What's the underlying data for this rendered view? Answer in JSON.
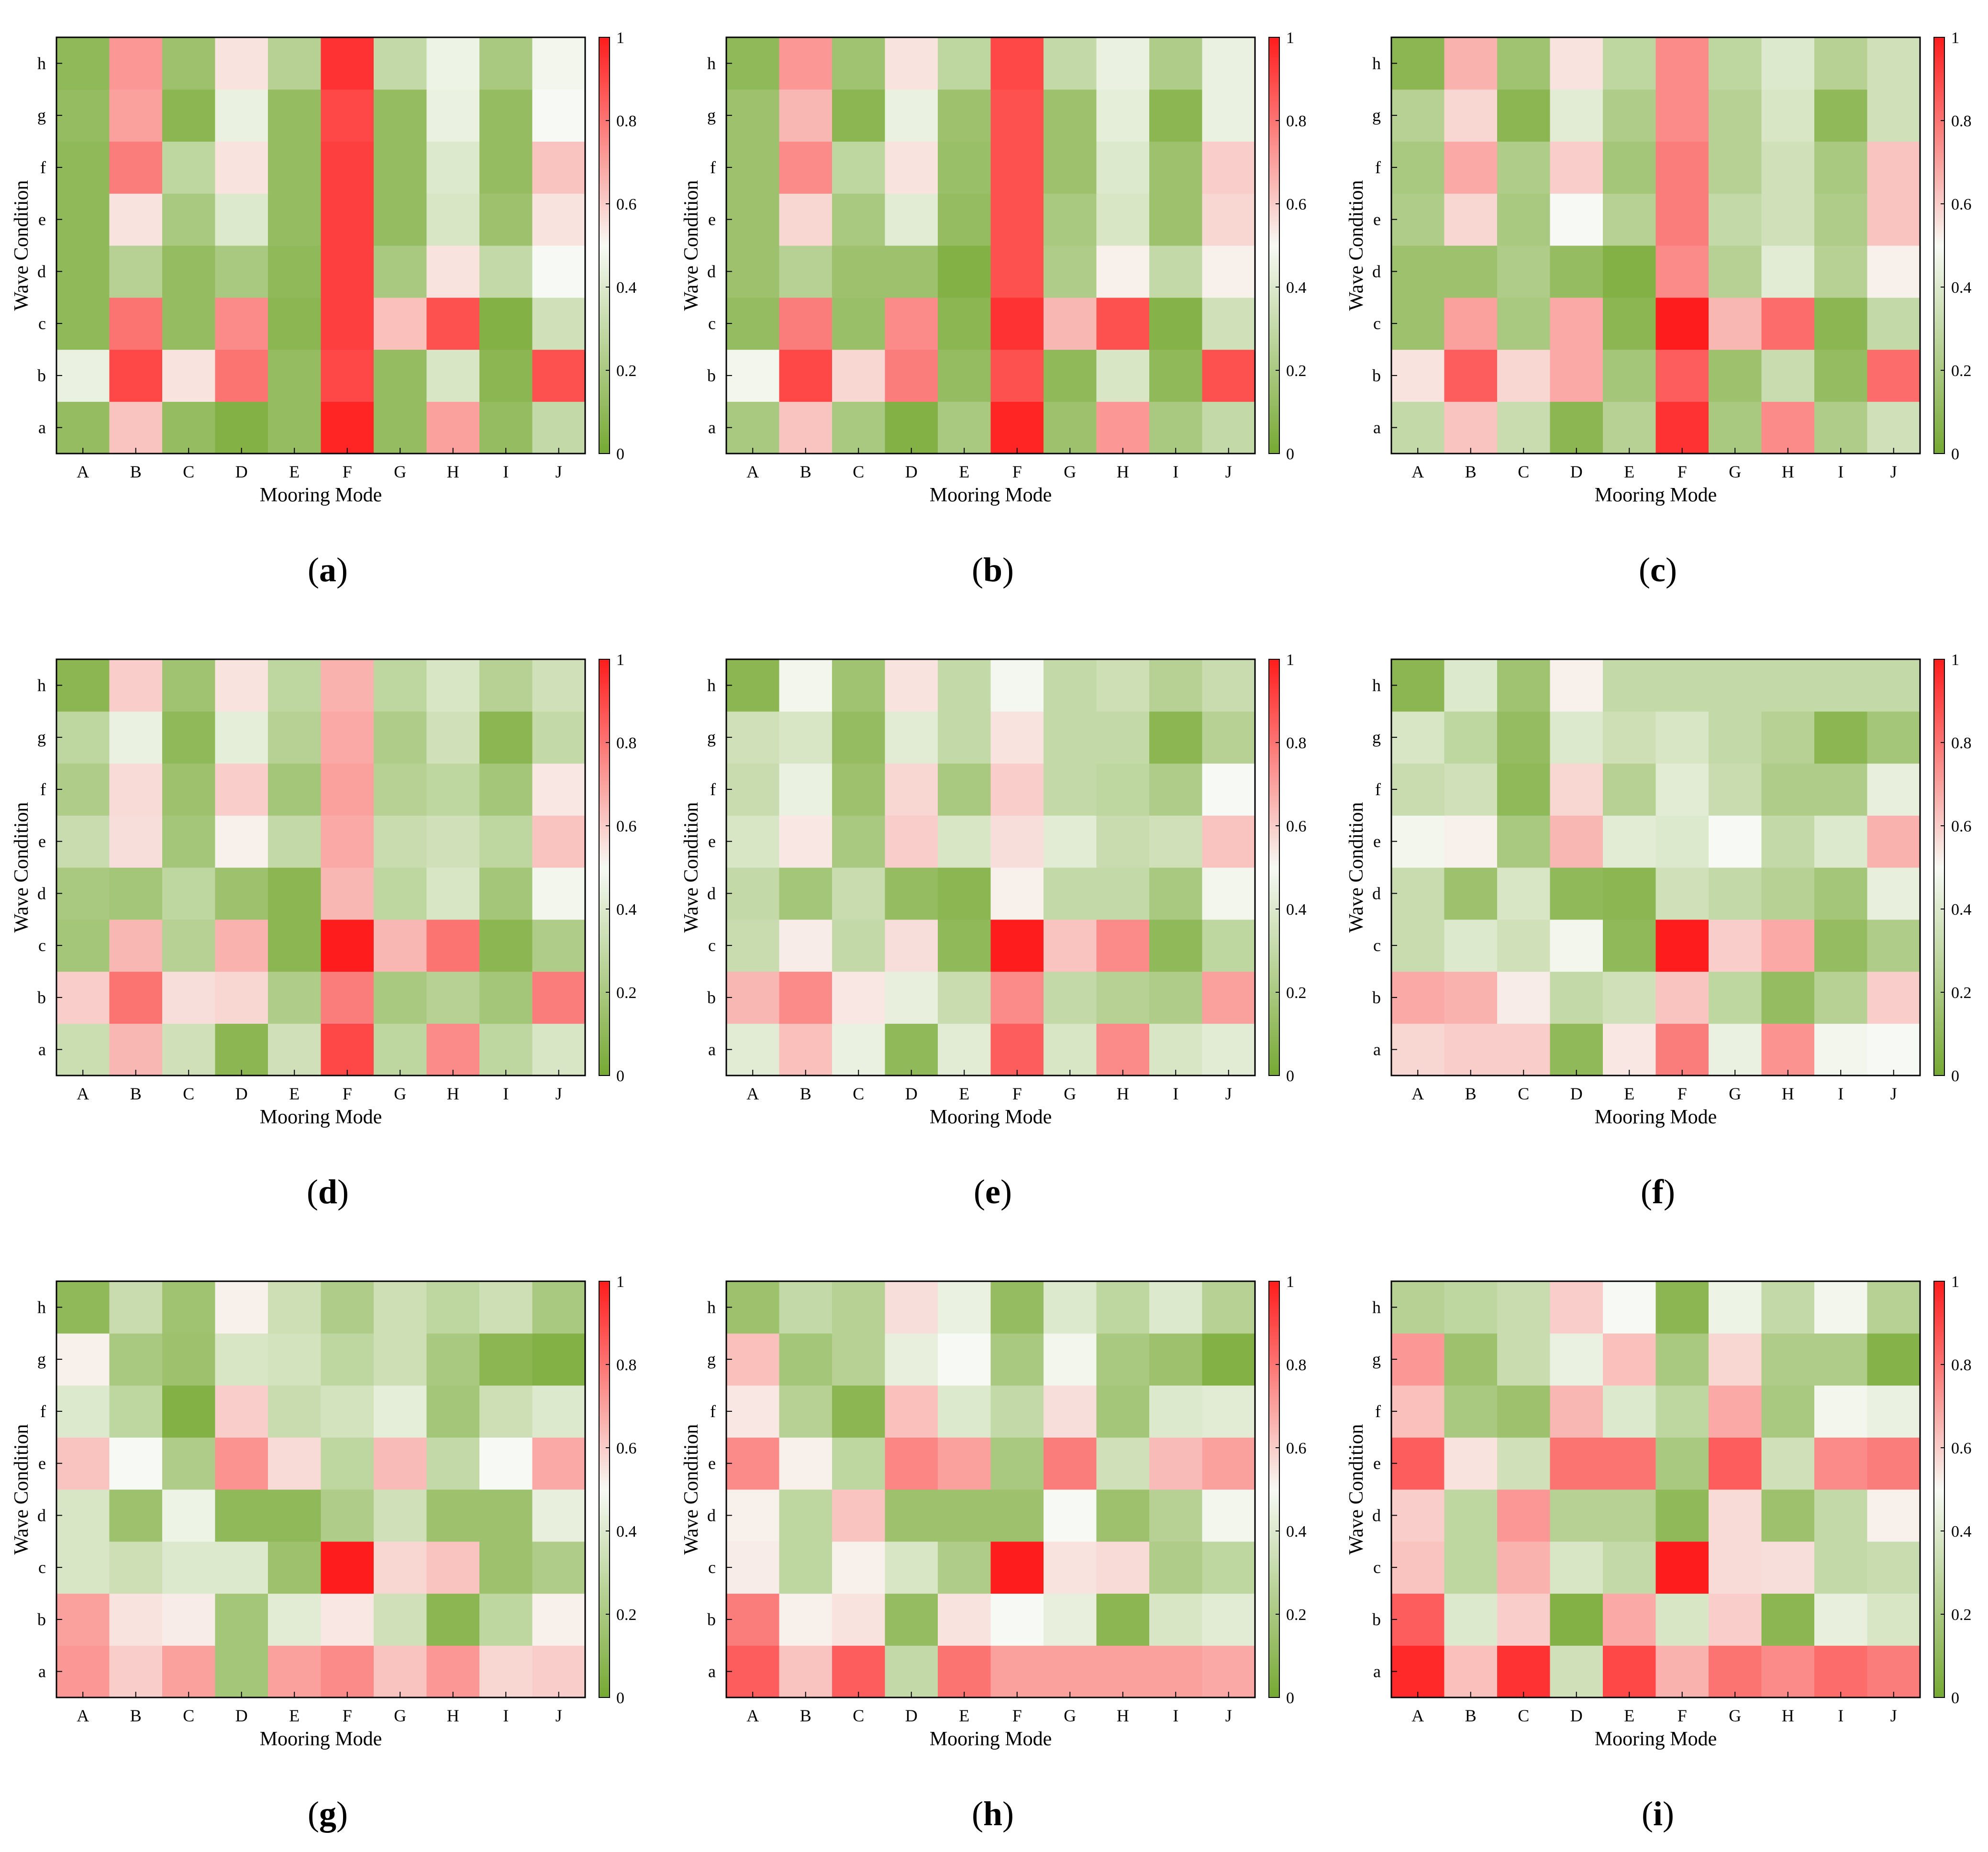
{
  "colors": {
    "low": "#76a933",
    "mid": "#f7f9f4",
    "high": "#ff1c1c",
    "frame": "#000000"
  },
  "chart_data": [
    {
      "type": "heatmap",
      "label_letter": "a",
      "xlabel": "Mooring Mode",
      "ylabel": "Wave Condition",
      "x_categories": [
        "A",
        "B",
        "C",
        "D",
        "E",
        "F",
        "G",
        "H",
        "I",
        "J"
      ],
      "y_categories": [
        "a",
        "b",
        "c",
        "d",
        "e",
        "f",
        "g",
        "h"
      ],
      "zlim": [
        0,
        1
      ],
      "colorbar_ticks": [
        "0",
        "0.2",
        "0.4",
        "0.6",
        "0.8",
        "1"
      ],
      "values": [
        [
          0.12,
          0.62,
          0.12,
          0.05,
          0.12,
          0.98,
          0.12,
          0.7,
          0.12,
          0.3
        ],
        [
          0.45,
          0.9,
          0.55,
          0.8,
          0.12,
          0.9,
          0.12,
          0.38,
          0.08,
          0.88
        ],
        [
          0.1,
          0.8,
          0.12,
          0.75,
          0.08,
          0.92,
          0.63,
          0.88,
          0.05,
          0.35
        ],
        [
          0.1,
          0.25,
          0.12,
          0.2,
          0.1,
          0.92,
          0.2,
          0.55,
          0.3,
          0.5
        ],
        [
          0.1,
          0.55,
          0.2,
          0.4,
          0.12,
          0.92,
          0.12,
          0.38,
          0.15,
          0.55
        ],
        [
          0.1,
          0.78,
          0.28,
          0.55,
          0.12,
          0.92,
          0.12,
          0.4,
          0.12,
          0.62
        ],
        [
          0.12,
          0.7,
          0.08,
          0.45,
          0.12,
          0.9,
          0.12,
          0.45,
          0.12,
          0.5
        ],
        [
          0.1,
          0.72,
          0.15,
          0.55,
          0.25,
          0.95,
          0.3,
          0.46,
          0.2,
          0.48
        ]
      ]
    },
    {
      "type": "heatmap",
      "label_letter": "b",
      "xlabel": "Mooring Mode",
      "ylabel": "Wave Condition",
      "x_categories": [
        "A",
        "B",
        "C",
        "D",
        "E",
        "F",
        "G",
        "H",
        "I",
        "J"
      ],
      "y_categories": [
        "a",
        "b",
        "c",
        "d",
        "e",
        "f",
        "g",
        "h"
      ],
      "zlim": [
        0,
        1
      ],
      "colorbar_ticks": [
        "0",
        "0.2",
        "0.4",
        "0.6",
        "0.8",
        "1"
      ],
      "values": [
        [
          0.2,
          0.62,
          0.2,
          0.05,
          0.2,
          0.98,
          0.15,
          0.72,
          0.2,
          0.3
        ],
        [
          0.48,
          0.9,
          0.58,
          0.78,
          0.12,
          0.88,
          0.1,
          0.38,
          0.1,
          0.88
        ],
        [
          0.12,
          0.78,
          0.14,
          0.75,
          0.08,
          0.95,
          0.65,
          0.88,
          0.06,
          0.35
        ],
        [
          0.15,
          0.25,
          0.15,
          0.15,
          0.05,
          0.88,
          0.22,
          0.52,
          0.3,
          0.52
        ],
        [
          0.15,
          0.58,
          0.2,
          0.42,
          0.12,
          0.88,
          0.2,
          0.38,
          0.15,
          0.58
        ],
        [
          0.15,
          0.75,
          0.28,
          0.55,
          0.14,
          0.88,
          0.15,
          0.4,
          0.15,
          0.6
        ],
        [
          0.15,
          0.65,
          0.08,
          0.45,
          0.15,
          0.88,
          0.15,
          0.43,
          0.08,
          0.45
        ],
        [
          0.1,
          0.72,
          0.16,
          0.55,
          0.28,
          0.9,
          0.3,
          0.45,
          0.22,
          0.45
        ]
      ]
    },
    {
      "type": "heatmap",
      "label_letter": "c",
      "xlabel": "Mooring Mode",
      "ylabel": "Wave Condition",
      "x_categories": [
        "A",
        "B",
        "C",
        "D",
        "E",
        "F",
        "G",
        "H",
        "I",
        "J"
      ],
      "y_categories": [
        "a",
        "b",
        "c",
        "d",
        "e",
        "f",
        "g",
        "h"
      ],
      "zlim": [
        0,
        1
      ],
      "colorbar_ticks": [
        "0",
        "0.2",
        "0.4",
        "0.6",
        "0.8",
        "1"
      ],
      "values": [
        [
          0.3,
          0.62,
          0.32,
          0.08,
          0.25,
          0.95,
          0.2,
          0.75,
          0.22,
          0.35
        ],
        [
          0.55,
          0.85,
          0.58,
          0.68,
          0.18,
          0.85,
          0.15,
          0.32,
          0.12,
          0.82
        ],
        [
          0.15,
          0.7,
          0.2,
          0.68,
          0.08,
          1.0,
          0.65,
          0.82,
          0.08,
          0.3
        ],
        [
          0.15,
          0.15,
          0.22,
          0.12,
          0.05,
          0.75,
          0.25,
          0.42,
          0.25,
          0.52
        ],
        [
          0.22,
          0.58,
          0.2,
          0.5,
          0.25,
          0.78,
          0.3,
          0.35,
          0.22,
          0.62
        ],
        [
          0.2,
          0.68,
          0.22,
          0.6,
          0.18,
          0.78,
          0.25,
          0.35,
          0.2,
          0.62
        ],
        [
          0.25,
          0.58,
          0.08,
          0.42,
          0.22,
          0.75,
          0.25,
          0.38,
          0.1,
          0.35
        ],
        [
          0.08,
          0.66,
          0.16,
          0.55,
          0.28,
          0.75,
          0.28,
          0.4,
          0.25,
          0.35
        ]
      ]
    },
    {
      "type": "heatmap",
      "label_letter": "d",
      "xlabel": "Mooring Mode",
      "ylabel": "Wave Condition",
      "x_categories": [
        "A",
        "B",
        "C",
        "D",
        "E",
        "F",
        "G",
        "H",
        "I",
        "J"
      ],
      "y_categories": [
        "a",
        "b",
        "c",
        "d",
        "e",
        "f",
        "g",
        "h"
      ],
      "zlim": [
        0,
        1
      ],
      "colorbar_ticks": [
        "0",
        "0.2",
        "0.4",
        "0.6",
        "0.8",
        "1"
      ],
      "values": [
        [
          0.33,
          0.65,
          0.35,
          0.08,
          0.35,
          0.9,
          0.28,
          0.75,
          0.28,
          0.38
        ],
        [
          0.6,
          0.8,
          0.56,
          0.58,
          0.22,
          0.78,
          0.2,
          0.25,
          0.18,
          0.78
        ],
        [
          0.18,
          0.65,
          0.25,
          0.66,
          0.08,
          1.0,
          0.65,
          0.8,
          0.08,
          0.22
        ],
        [
          0.2,
          0.18,
          0.28,
          0.15,
          0.08,
          0.65,
          0.28,
          0.38,
          0.18,
          0.48
        ],
        [
          0.32,
          0.56,
          0.18,
          0.52,
          0.3,
          0.68,
          0.32,
          0.35,
          0.28,
          0.62
        ],
        [
          0.22,
          0.57,
          0.15,
          0.6,
          0.18,
          0.7,
          0.25,
          0.28,
          0.18,
          0.54
        ],
        [
          0.28,
          0.45,
          0.1,
          0.43,
          0.25,
          0.68,
          0.22,
          0.35,
          0.08,
          0.3
        ],
        [
          0.08,
          0.6,
          0.16,
          0.55,
          0.28,
          0.66,
          0.28,
          0.38,
          0.25,
          0.35
        ]
      ]
    },
    {
      "type": "heatmap",
      "label_letter": "e",
      "xlabel": "Mooring Mode",
      "ylabel": "Wave Condition",
      "x_categories": [
        "A",
        "B",
        "C",
        "D",
        "E",
        "F",
        "G",
        "H",
        "I",
        "J"
      ],
      "y_categories": [
        "a",
        "b",
        "c",
        "d",
        "e",
        "f",
        "g",
        "h"
      ],
      "zlim": [
        0,
        1
      ],
      "colorbar_ticks": [
        "0",
        "0.2",
        "0.4",
        "0.6",
        "0.8",
        "1"
      ],
      "values": [
        [
          0.42,
          0.63,
          0.45,
          0.1,
          0.42,
          0.85,
          0.38,
          0.75,
          0.38,
          0.42
        ],
        [
          0.65,
          0.75,
          0.54,
          0.44,
          0.32,
          0.75,
          0.3,
          0.25,
          0.22,
          0.7
        ],
        [
          0.32,
          0.53,
          0.3,
          0.56,
          0.1,
          1.0,
          0.62,
          0.75,
          0.1,
          0.28
        ],
        [
          0.3,
          0.18,
          0.32,
          0.12,
          0.08,
          0.52,
          0.3,
          0.3,
          0.2,
          0.48
        ],
        [
          0.38,
          0.54,
          0.2,
          0.6,
          0.38,
          0.56,
          0.42,
          0.32,
          0.35,
          0.62
        ],
        [
          0.32,
          0.45,
          0.15,
          0.58,
          0.2,
          0.6,
          0.3,
          0.28,
          0.22,
          0.5
        ],
        [
          0.35,
          0.38,
          0.12,
          0.42,
          0.3,
          0.55,
          0.3,
          0.3,
          0.08,
          0.25
        ],
        [
          0.08,
          0.48,
          0.16,
          0.55,
          0.3,
          0.49,
          0.3,
          0.34,
          0.25,
          0.32
        ]
      ]
    },
    {
      "type": "heatmap",
      "label_letter": "f",
      "xlabel": "Mooring Mode",
      "ylabel": "Wave Condition",
      "x_categories": [
        "A",
        "B",
        "C",
        "D",
        "E",
        "F",
        "G",
        "H",
        "I",
        "J"
      ],
      "y_categories": [
        "a",
        "b",
        "c",
        "d",
        "e",
        "f",
        "g",
        "h"
      ],
      "zlim": [
        0,
        1
      ],
      "colorbar_ticks": [
        "0",
        "0.2",
        "0.4",
        "0.6",
        "0.8",
        "1"
      ],
      "values": [
        [
          0.58,
          0.6,
          0.6,
          0.1,
          0.54,
          0.78,
          0.45,
          0.73,
          0.48,
          0.5
        ],
        [
          0.68,
          0.66,
          0.53,
          0.3,
          0.35,
          0.62,
          0.28,
          0.12,
          0.25,
          0.6
        ],
        [
          0.32,
          0.4,
          0.35,
          0.48,
          0.1,
          1.0,
          0.6,
          0.68,
          0.12,
          0.22
        ],
        [
          0.32,
          0.15,
          0.38,
          0.1,
          0.08,
          0.35,
          0.3,
          0.25,
          0.18,
          0.44
        ],
        [
          0.48,
          0.52,
          0.2,
          0.65,
          0.42,
          0.4,
          0.5,
          0.3,
          0.4,
          0.66
        ],
        [
          0.32,
          0.35,
          0.1,
          0.58,
          0.25,
          0.42,
          0.32,
          0.22,
          0.22,
          0.44
        ],
        [
          0.38,
          0.28,
          0.12,
          0.4,
          0.34,
          0.38,
          0.3,
          0.25,
          0.08,
          0.18
        ],
        [
          0.08,
          0.4,
          0.16,
          0.52,
          0.3,
          0.3,
          0.3,
          0.3,
          0.3,
          0.3
        ]
      ]
    },
    {
      "type": "heatmap",
      "label_letter": "g",
      "xlabel": "Mooring Mode",
      "ylabel": "Wave Condition",
      "x_categories": [
        "A",
        "B",
        "C",
        "D",
        "E",
        "F",
        "G",
        "H",
        "I",
        "J"
      ],
      "y_categories": [
        "a",
        "b",
        "c",
        "d",
        "e",
        "f",
        "g",
        "h"
      ],
      "zlim": [
        0,
        1
      ],
      "colorbar_ticks": [
        "0",
        "0.2",
        "0.4",
        "0.6",
        "0.8",
        "1"
      ],
      "values": [
        [
          0.72,
          0.6,
          0.7,
          0.18,
          0.7,
          0.75,
          0.62,
          0.72,
          0.58,
          0.6
        ],
        [
          0.7,
          0.55,
          0.53,
          0.18,
          0.42,
          0.54,
          0.35,
          0.08,
          0.28,
          0.52
        ],
        [
          0.38,
          0.34,
          0.4,
          0.4,
          0.15,
          1.0,
          0.58,
          0.62,
          0.15,
          0.22
        ],
        [
          0.38,
          0.15,
          0.46,
          0.1,
          0.1,
          0.22,
          0.35,
          0.15,
          0.15,
          0.44
        ],
        [
          0.62,
          0.5,
          0.22,
          0.73,
          0.57,
          0.28,
          0.64,
          0.3,
          0.5,
          0.68
        ],
        [
          0.4,
          0.28,
          0.05,
          0.6,
          0.32,
          0.36,
          0.43,
          0.18,
          0.34,
          0.4
        ],
        [
          0.52,
          0.2,
          0.15,
          0.38,
          0.36,
          0.28,
          0.34,
          0.2,
          0.08,
          0.05
        ],
        [
          0.1,
          0.32,
          0.16,
          0.52,
          0.34,
          0.22,
          0.34,
          0.28,
          0.34,
          0.2
        ]
      ]
    },
    {
      "type": "heatmap",
      "label_letter": "h",
      "xlabel": "Mooring Mode",
      "ylabel": "Wave Condition",
      "x_categories": [
        "A",
        "B",
        "C",
        "D",
        "E",
        "F",
        "G",
        "H",
        "I",
        "J"
      ],
      "y_categories": [
        "a",
        "b",
        "c",
        "d",
        "e",
        "f",
        "g",
        "h"
      ],
      "zlim": [
        0,
        1
      ],
      "colorbar_ticks": [
        "0",
        "0.2",
        "0.4",
        "0.6",
        "0.8",
        "1"
      ],
      "values": [
        [
          0.85,
          0.62,
          0.85,
          0.3,
          0.8,
          0.7,
          0.7,
          0.7,
          0.7,
          0.68
        ],
        [
          0.78,
          0.52,
          0.55,
          0.12,
          0.55,
          0.5,
          0.44,
          0.08,
          0.38,
          0.42
        ],
        [
          0.53,
          0.28,
          0.52,
          0.38,
          0.22,
          1.0,
          0.55,
          0.57,
          0.22,
          0.28
        ],
        [
          0.52,
          0.28,
          0.62,
          0.15,
          0.15,
          0.15,
          0.5,
          0.15,
          0.25,
          0.48
        ],
        [
          0.75,
          0.52,
          0.28,
          0.76,
          0.7,
          0.2,
          0.78,
          0.35,
          0.64,
          0.7
        ],
        [
          0.54,
          0.25,
          0.08,
          0.63,
          0.4,
          0.3,
          0.56,
          0.18,
          0.4,
          0.42
        ],
        [
          0.63,
          0.18,
          0.25,
          0.44,
          0.5,
          0.2,
          0.48,
          0.2,
          0.15,
          0.05
        ],
        [
          0.15,
          0.3,
          0.25,
          0.56,
          0.45,
          0.12,
          0.4,
          0.28,
          0.4,
          0.25
        ]
      ]
    },
    {
      "type": "heatmap",
      "label_letter": "i",
      "xlabel": "Mooring Mode",
      "ylabel": "Wave Condition",
      "x_categories": [
        "A",
        "B",
        "C",
        "D",
        "E",
        "F",
        "G",
        "H",
        "I",
        "J"
      ],
      "y_categories": [
        "a",
        "b",
        "c",
        "d",
        "e",
        "f",
        "g",
        "h"
      ],
      "zlim": [
        0,
        1
      ],
      "colorbar_ticks": [
        "0",
        "0.2",
        "0.4",
        "0.6",
        "0.8",
        "1"
      ],
      "values": [
        [
          0.97,
          0.63,
          0.95,
          0.35,
          0.9,
          0.66,
          0.8,
          0.75,
          0.82,
          0.78
        ],
        [
          0.85,
          0.4,
          0.6,
          0.05,
          0.68,
          0.38,
          0.6,
          0.08,
          0.44,
          0.38
        ],
        [
          0.62,
          0.28,
          0.66,
          0.38,
          0.3,
          1.0,
          0.57,
          0.56,
          0.3,
          0.32
        ],
        [
          0.6,
          0.28,
          0.72,
          0.25,
          0.25,
          0.1,
          0.57,
          0.15,
          0.3,
          0.52
        ],
        [
          0.85,
          0.55,
          0.35,
          0.8,
          0.8,
          0.2,
          0.85,
          0.35,
          0.75,
          0.78
        ],
        [
          0.63,
          0.2,
          0.15,
          0.65,
          0.4,
          0.28,
          0.68,
          0.2,
          0.48,
          0.45
        ],
        [
          0.72,
          0.15,
          0.32,
          0.45,
          0.63,
          0.2,
          0.58,
          0.22,
          0.22,
          0.06
        ],
        [
          0.25,
          0.28,
          0.32,
          0.6,
          0.5,
          0.08,
          0.46,
          0.3,
          0.48,
          0.25
        ]
      ]
    }
  ]
}
